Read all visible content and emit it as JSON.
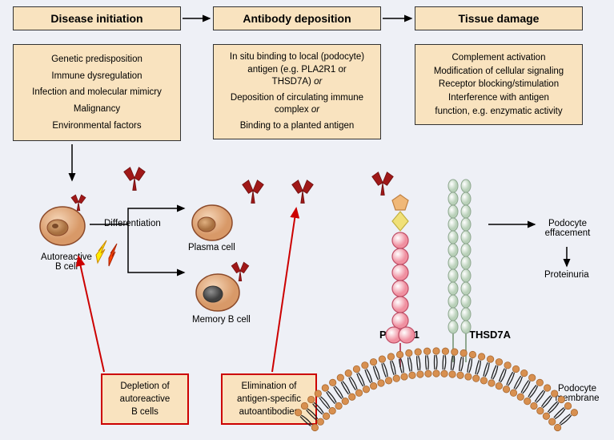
{
  "headers": {
    "h1": "Disease initiation",
    "h2": "Antibody deposition",
    "h3": "Tissue damage"
  },
  "box1": {
    "l1": "Genetic predisposition",
    "l2": "Immune dysregulation",
    "l3": "Infection and molecular mimicry",
    "l4": "Malignancy",
    "l5": "Environmental factors"
  },
  "box2": {
    "l1a": "In situ binding to local (podocyte)",
    "l1b": "antigen (e.g. PLA2R1 or",
    "l1c": "THSD7A) ",
    "or1": "or",
    "l2a": "Deposition of circulating immune",
    "l2b": "complex ",
    "or2": "or",
    "l3": "Binding to a planted antigen"
  },
  "box3": {
    "l1": "Complement activation",
    "l2": "Modification of cellular signaling",
    "l3": "Receptor blocking/stimulation",
    "l4a": "Interference with antigen",
    "l4b": "function, e.g. enzymatic activity"
  },
  "labels": {
    "diff": "Differentiation",
    "bcell": "Autoreactive",
    "bcell2": "B cell",
    "plasma": "Plasma cell",
    "memory": "Memory B cell",
    "pla2r1": "PLA2R1",
    "thsd7a": "THSD7A",
    "eff1": "Podocyte",
    "eff2": "effacement",
    "prot": "Proteinuria",
    "memb1": "Podocyte",
    "memb2": "membrane"
  },
  "redbox1": {
    "l1": "Depletion of",
    "l2": "autoreactive",
    "l3": "B cells"
  },
  "redbox2": {
    "l1": "Elimination of",
    "l2": "antigen-specific",
    "l3": "autoantibodies"
  },
  "colors": {
    "boxFill": "#f9e3bf",
    "border": "#333333",
    "red": "#cc0000",
    "cellFill": "#e8b88f",
    "cellStroke": "#8b4a2a",
    "nucleusFill": "#c89060",
    "nucleusDark": "#5a5a5a",
    "antibody": "#a01818",
    "pla2rFill": "#f4b4bd",
    "pla2rStroke": "#c05068",
    "thsdFill": "#d8e8d8",
    "thsdStroke": "#8fa890",
    "pentagon": "#e8a060",
    "diamond": "#e8d860",
    "membHead": "#d89050",
    "membTail": "#222222",
    "lightning1": "#ffee00",
    "lightning2": "#ff4400"
  }
}
